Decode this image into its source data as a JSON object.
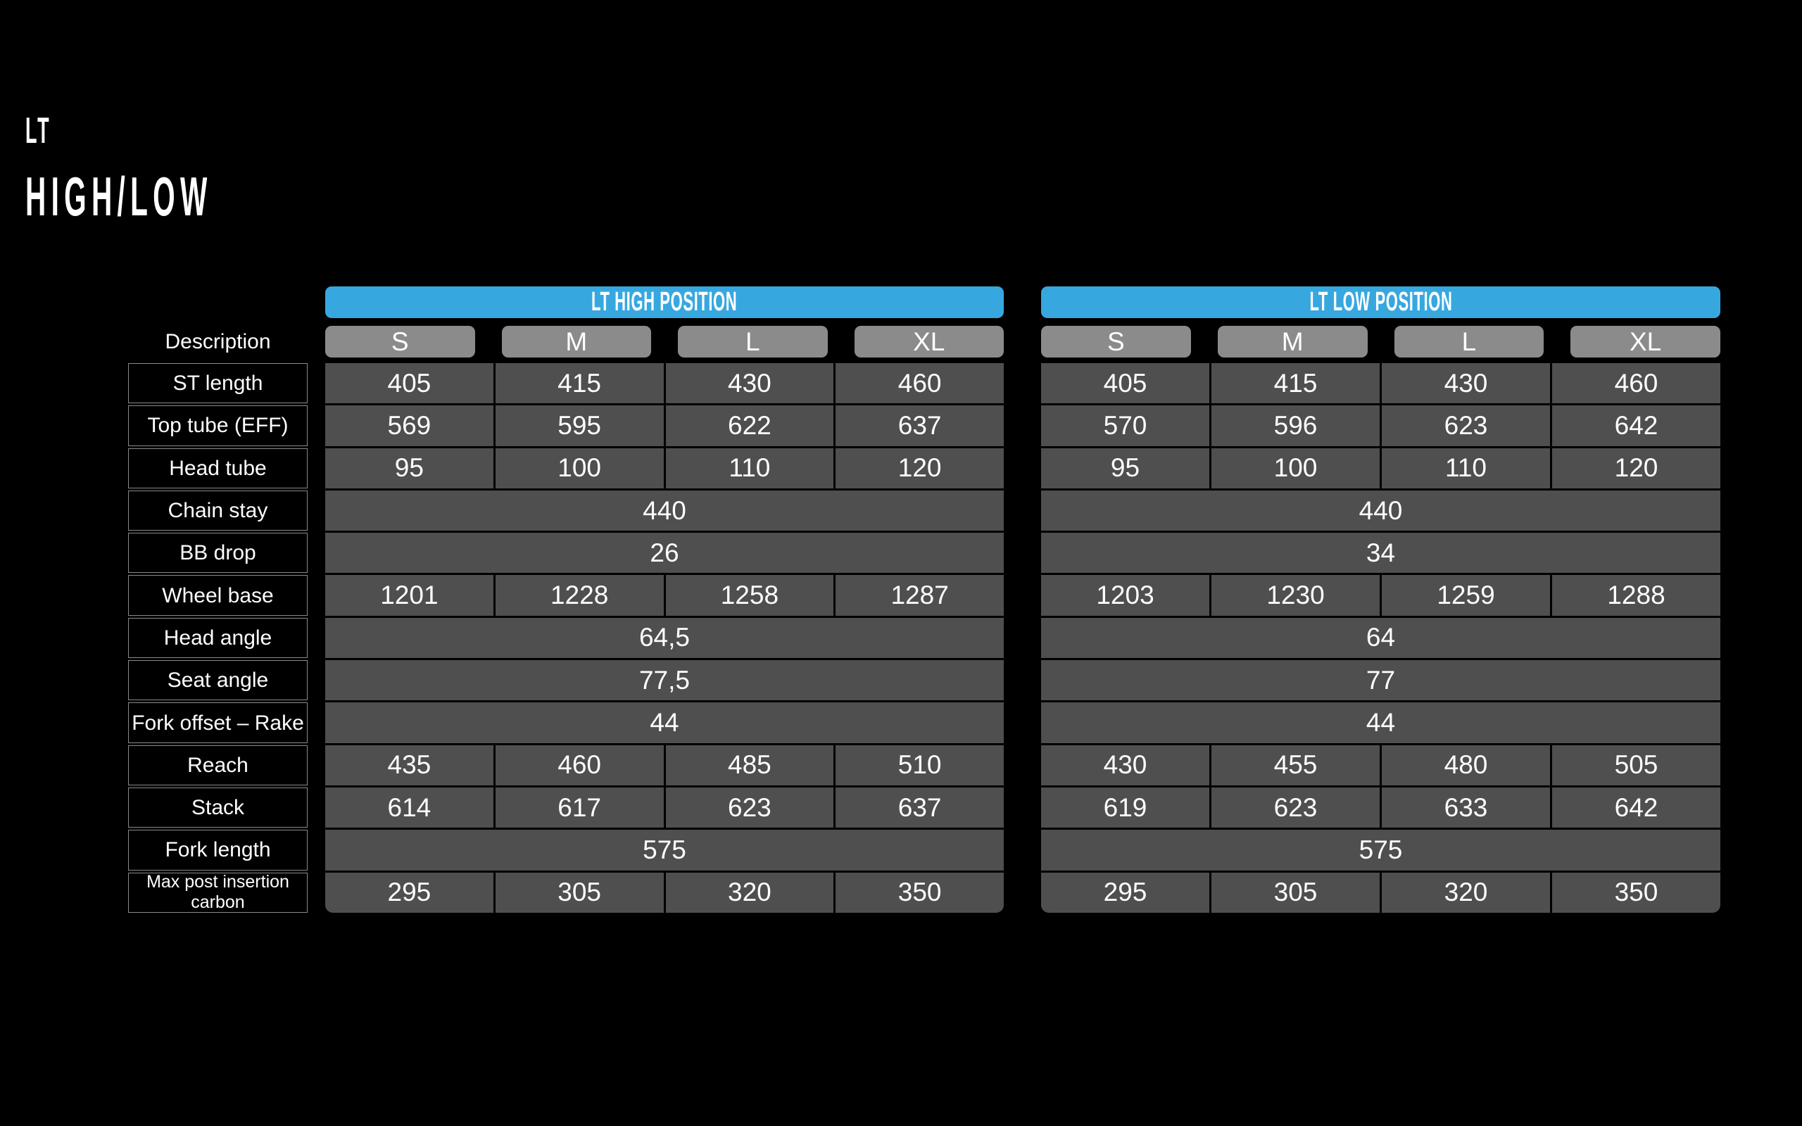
{
  "title": {
    "line1": "LT",
    "line2": "HIGH/LOW"
  },
  "description_label": "Description",
  "sizes": [
    "S",
    "M",
    "L",
    "XL"
  ],
  "row_labels": [
    "ST length",
    "Top tube (EFF)",
    "Head tube",
    "Chain stay",
    "BB drop",
    "Wheel base",
    "Head angle",
    "Seat angle",
    "Fork offset – Rake",
    "Reach",
    "Stack",
    "Fork length",
    "Max post insertion carbon"
  ],
  "colors": {
    "background": "#000000",
    "accent_blue": "#37A8DF",
    "pill_gray": "#8B8B8B",
    "cell_gray": "#4F4F4F",
    "label_border": "#8A8A8A",
    "text": "#FFFFFF"
  },
  "tables": [
    {
      "header": "LT HIGH POSITION",
      "rows": [
        {
          "label": "ST length",
          "values": [
            "405",
            "415",
            "430",
            "460"
          ]
        },
        {
          "label": "Top tube (EFF)",
          "values": [
            "569",
            "595",
            "622",
            "637"
          ]
        },
        {
          "label": "Head tube",
          "values": [
            "95",
            "100",
            "110",
            "120"
          ]
        },
        {
          "label": "Chain stay",
          "merged": "440"
        },
        {
          "label": "BB drop",
          "merged": "26"
        },
        {
          "label": "Wheel base",
          "values": [
            "1201",
            "1228",
            "1258",
            "1287"
          ]
        },
        {
          "label": "Head angle",
          "merged": "64,5"
        },
        {
          "label": "Seat angle",
          "merged": "77,5"
        },
        {
          "label": "Fork offset – Rake",
          "merged": "44"
        },
        {
          "label": "Reach",
          "values": [
            "435",
            "460",
            "485",
            "510"
          ]
        },
        {
          "label": "Stack",
          "values": [
            "614",
            "617",
            "623",
            "637"
          ]
        },
        {
          "label": "Fork length",
          "merged": "575"
        },
        {
          "label": "Max post insertion carbon",
          "values": [
            "295",
            "305",
            "320",
            "350"
          ]
        }
      ]
    },
    {
      "header": "LT LOW POSITION",
      "rows": [
        {
          "label": "ST length",
          "values": [
            "405",
            "415",
            "430",
            "460"
          ]
        },
        {
          "label": "Top tube (EFF)",
          "values": [
            "570",
            "596",
            "623",
            "642"
          ]
        },
        {
          "label": "Head tube",
          "values": [
            "95",
            "100",
            "110",
            "120"
          ]
        },
        {
          "label": "Chain stay",
          "merged": "440"
        },
        {
          "label": "BB drop",
          "merged": "34"
        },
        {
          "label": "Wheel base",
          "values": [
            "1203",
            "1230",
            "1259",
            "1288"
          ]
        },
        {
          "label": "Head angle",
          "merged": "64"
        },
        {
          "label": "Seat angle",
          "merged": "77"
        },
        {
          "label": "Fork offset – Rake",
          "merged": "44"
        },
        {
          "label": "Reach",
          "values": [
            "430",
            "455",
            "480",
            "505"
          ]
        },
        {
          "label": "Stack",
          "values": [
            "619",
            "623",
            "633",
            "642"
          ]
        },
        {
          "label": "Fork length",
          "merged": "575"
        },
        {
          "label": "Max post insertion carbon",
          "values": [
            "295",
            "305",
            "320",
            "350"
          ]
        }
      ]
    }
  ]
}
